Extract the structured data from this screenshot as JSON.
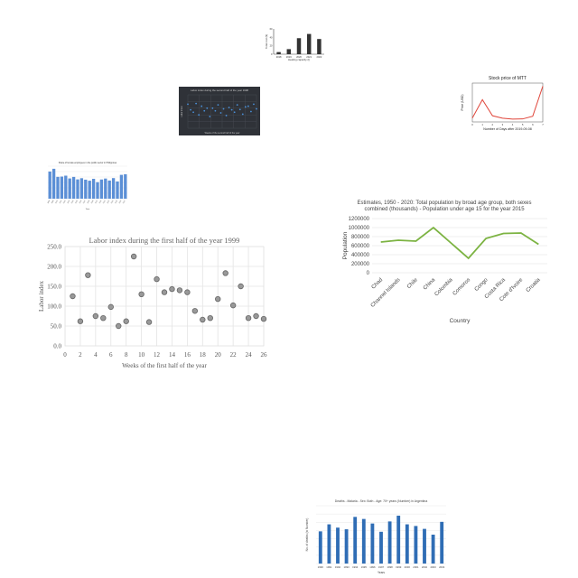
{
  "chart_data": [
    {
      "id": "top_bar",
      "type": "bar",
      "title": "",
      "xlabel": "Heating capacity (l)",
      "ylabel": "Total cost ($)",
      "categories": [
        "2018",
        "2019",
        "2020",
        "2021",
        "2022"
      ],
      "values": [
        5,
        12,
        38,
        48,
        36
      ],
      "ylim": [
        0,
        60
      ],
      "yticks": [
        "0",
        "20",
        "40",
        "60"
      ],
      "colors": {
        "bar": "#333333"
      }
    },
    {
      "id": "dark_scatter",
      "type": "scatter",
      "title": "Labor index during the second half of the year 1998",
      "xlabel": "Weeks of the second half of the year",
      "ylabel": "Labor index",
      "x": [
        1,
        2,
        3,
        4,
        5,
        6,
        7,
        8,
        9,
        10,
        11,
        12,
        13,
        14,
        15,
        16,
        17,
        18,
        19,
        20,
        21,
        22,
        23,
        24,
        25,
        26
      ],
      "y": [
        72,
        55,
        48,
        74,
        40,
        66,
        52,
        60,
        35,
        60,
        52,
        70,
        46,
        58,
        38,
        62,
        55,
        48,
        70,
        56,
        42,
        64,
        66,
        50,
        72,
        58
      ],
      "ylim": [
        0,
        100
      ],
      "grid": true,
      "colors": {
        "point": "#4a90d9",
        "background": "#2f3238"
      }
    },
    {
      "id": "stock_line",
      "type": "line",
      "title": "Stock price of MTT",
      "xlabel": "Number of Days after 2019-09-08",
      "ylabel": "Price (USD)",
      "x": [
        0,
        1,
        2,
        3,
        4,
        5,
        6,
        7
      ],
      "y": [
        50.2,
        60.6,
        51.5,
        50.1,
        49.6,
        49.7,
        51.2,
        68.2
      ],
      "xticks": [
        "0",
        "1",
        "2",
        "3",
        "4",
        "5",
        "6",
        "7"
      ],
      "ylim": [
        48,
        70
      ],
      "colors": {
        "line": "#e0453a"
      }
    },
    {
      "id": "small_bar",
      "type": "bar",
      "title": "Share of female employees in the public sector in Philippines",
      "xlabel": "Year",
      "ylabel": "",
      "categories": [
        "1998",
        "1999",
        "2000",
        "2001",
        "2002",
        "2003",
        "2004",
        "2005",
        "2006",
        "2007",
        "2008",
        "2009",
        "2010",
        "2011",
        "2012",
        "2013",
        "2014",
        "2015",
        "2016",
        "2017"
      ],
      "values": [
        50.1,
        55.2,
        40.3,
        40.8,
        42.5,
        37.4,
        40.2,
        35.6,
        37.8,
        35.1,
        33.2,
        36.7,
        30.5,
        35.4,
        37.2,
        33.5,
        38.0,
        31.8,
        44.0,
        45.2
      ],
      "ylim": [
        0,
        60
      ],
      "colors": {
        "bar": "#5b8fd6"
      }
    },
    {
      "id": "labor_scatter",
      "type": "scatter",
      "title": "Labor index during the first half of the year 1999",
      "xlabel": "Weeks of the first half of the year",
      "ylabel": "Labor index",
      "x": [
        1,
        2,
        3,
        4,
        5,
        6,
        7,
        8,
        9,
        10,
        11,
        12,
        13,
        14,
        15,
        16,
        17,
        18,
        19,
        20,
        21,
        22,
        23,
        24,
        25,
        26
      ],
      "y": [
        125,
        62,
        178,
        75,
        70,
        98,
        50,
        62,
        225,
        130,
        60,
        168,
        135,
        143,
        140,
        135,
        88,
        66,
        70,
        118,
        183,
        102,
        150,
        70,
        75,
        68
      ],
      "xlim": [
        0,
        26
      ],
      "ylim": [
        0,
        250
      ],
      "xticks": [
        "0",
        "2",
        "4",
        "6",
        "8",
        "10",
        "12",
        "14",
        "16",
        "18",
        "20",
        "22",
        "24",
        "26"
      ],
      "yticks": [
        "0.0",
        "50.0",
        "100.0",
        "150.0",
        "200.0",
        "250.0"
      ],
      "grid": true,
      "colors": {
        "point": "#999999",
        "stroke": "#666666"
      }
    },
    {
      "id": "population_line",
      "type": "line",
      "title": "Estimates, 1950 - 2020: Total population by broad age group, both sexes combined (thousands) - Population under age 15 for the year 2015",
      "xlabel": "Country",
      "ylabel": "Population",
      "categories": [
        "Chad",
        "Channel Islands",
        "Chile",
        "China",
        "Colombia",
        "Comoros",
        "Congo",
        "Costa Rica",
        "Cote d'Ivoire",
        "Croatia"
      ],
      "values": [
        680000,
        720000,
        700000,
        1000000,
        660000,
        320000,
        760000,
        870000,
        880000,
        630000
      ],
      "ylim": [
        0,
        1200000
      ],
      "yticks": [
        "0",
        "200000",
        "400000",
        "600000",
        "800000",
        "1000000",
        "1200000"
      ],
      "colors": {
        "line": "#7cb342"
      }
    },
    {
      "id": "deaths_bar",
      "type": "bar",
      "title": "Deaths - Malaria - Sex: Both - Age: 70+ years (Number) in Argentina",
      "xlabel": "Years",
      "ylabel": "No. of deaths (in Number)",
      "categories": [
        "1990",
        "1991",
        "1992",
        "1993",
        "1994",
        "1995",
        "1996",
        "1997",
        "1998",
        "1999",
        "2000",
        "2001",
        "2002",
        "2003",
        "2004"
      ],
      "values": [
        7.8,
        9.5,
        8.7,
        8.3,
        11.3,
        10.8,
        9.7,
        7.7,
        10.2,
        11.6,
        9.5,
        9.1,
        8.4,
        7.0,
        10.1
      ],
      "ylim": [
        0,
        14
      ],
      "colors": {
        "bar": "#2f6db5"
      }
    }
  ]
}
